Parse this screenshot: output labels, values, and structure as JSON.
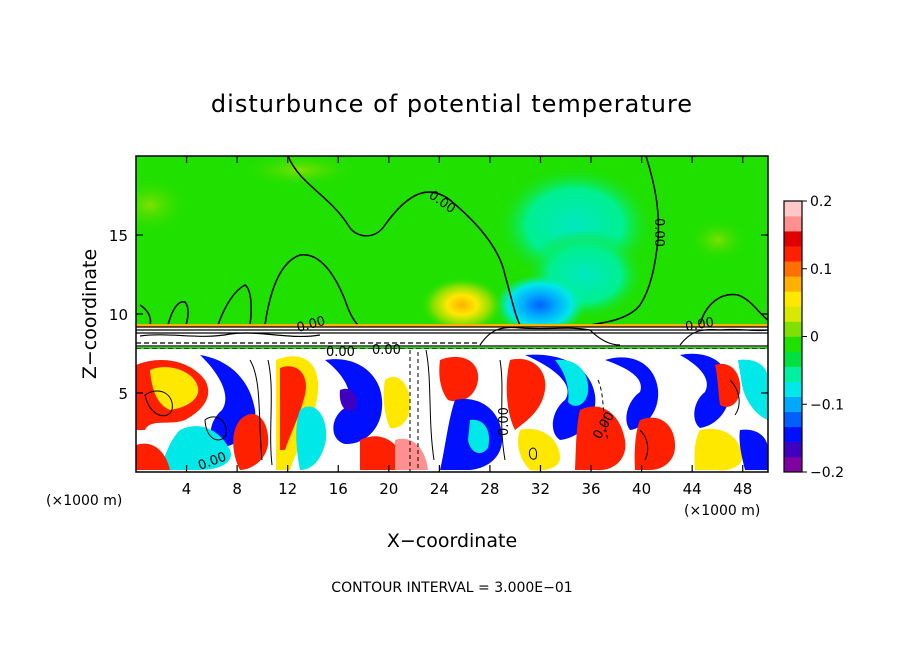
{
  "chart_data": {
    "type": "heatmap",
    "title": "disturbunce of potential temperature",
    "xlabel": "X−coordinate",
    "ylabel": "Z−coordinate",
    "x_unit": "(×1000 m)",
    "y_unit": "(×1000 m)",
    "xlim": [
      0,
      50
    ],
    "ylim": [
      0,
      20
    ],
    "x_ticks": [
      "4",
      "8",
      "12",
      "16",
      "20",
      "24",
      "28",
      "32",
      "36",
      "40",
      "44",
      "48"
    ],
    "x_tick_values": [
      4,
      8,
      12,
      16,
      20,
      24,
      28,
      32,
      36,
      40,
      44,
      48
    ],
    "y_ticks": [
      "5",
      "10",
      "15"
    ],
    "y_tick_values": [
      5,
      10,
      15
    ],
    "colorbar": {
      "min": -0.2,
      "max": 0.2,
      "tick_labels": [
        "0.2",
        "0.1",
        "0",
        "−0.1",
        "−0.2"
      ],
      "tick_values": [
        0.2,
        0.1,
        0,
        -0.1,
        -0.2
      ],
      "colors": [
        "#8000a0",
        "#4000c0",
        "#0010ff",
        "#0060ff",
        "#00a8ff",
        "#00e8e8",
        "#00f0a0",
        "#00e040",
        "#20e000",
        "#80e000",
        "#d8e800",
        "#ffe800",
        "#ffb000",
        "#ff7000",
        "#ff2000",
        "#e00000",
        "#ff9090",
        "#ffc8c8"
      ]
    },
    "contour_labels": [
      "0.00",
      "0.00",
      "0.00",
      "0.00",
      "0.00",
      "0.00",
      "0.00",
      "0.00",
      "0.00"
    ],
    "annotation": "CONTOUR INTERVAL = 3.000E−01"
  }
}
